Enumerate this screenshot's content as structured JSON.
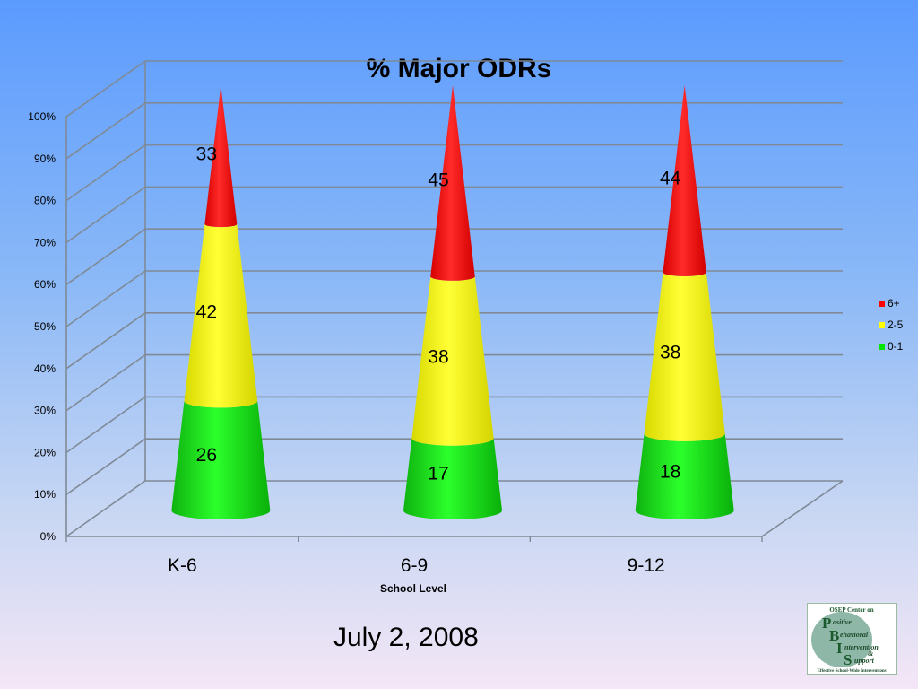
{
  "chart_data": {
    "type": "bar",
    "style": "3d-stacked-cone",
    "title": "% Major ODRs",
    "xlabel": "School Level",
    "ylabel": "",
    "categories": [
      "K-6",
      "6-9",
      "9-12"
    ],
    "series": [
      {
        "name": "0-1",
        "values": [
          26,
          17,
          18
        ],
        "color": "#00e600"
      },
      {
        "name": "2-5",
        "values": [
          42,
          38,
          38
        ],
        "color": "#ffff00"
      },
      {
        "name": "6+",
        "values": [
          33,
          45,
          44
        ],
        "color": "#ff0000"
      }
    ],
    "y_ticks": [
      "0%",
      "10%",
      "20%",
      "30%",
      "40%",
      "50%",
      "60%",
      "70%",
      "80%",
      "90%",
      "100%"
    ],
    "ylim": [
      0,
      100
    ],
    "stacked": true,
    "percent_stacked": true,
    "grid": true,
    "legend_position": "right",
    "legend_order": [
      "6+",
      "2-5",
      "0-1"
    ]
  },
  "footer": {
    "date": "July 2, 2008"
  },
  "logo": {
    "header": "OSEP Center on",
    "letters": [
      "P",
      "B",
      "I",
      "S"
    ],
    "words": [
      "ositive",
      "ehavioral",
      "ntervention",
      "&",
      "upport"
    ],
    "tagline": "Effective School-Wide Interventions"
  }
}
